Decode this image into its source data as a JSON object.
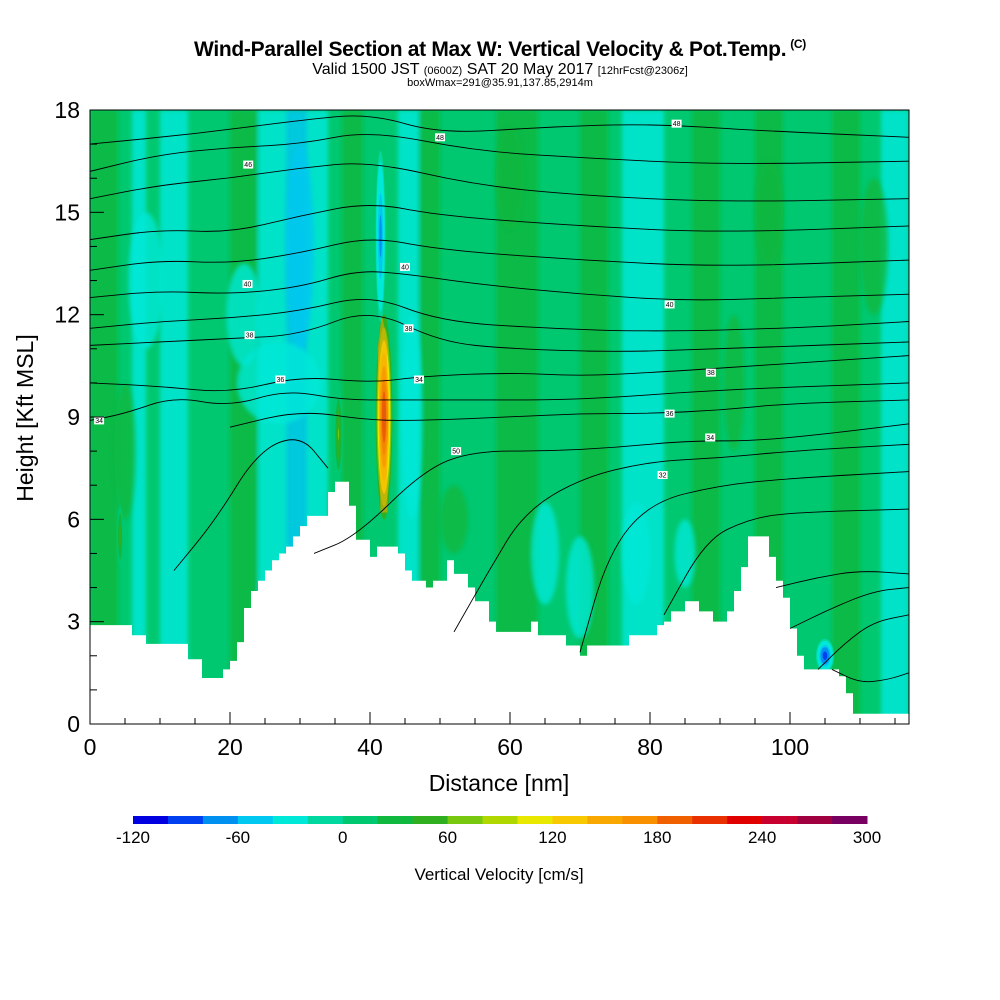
{
  "chart_data": {
    "type": "heatmap",
    "title": "Wind-Parallel Section at Max W: Vertical Velocity & Pot.Temp.",
    "title_unit": "(C)",
    "subtitle": {
      "valid": "Valid 1500 JST",
      "zulu": "(0600Z)",
      "date": "SAT 20 May 2017",
      "fcst": "[12hrFcst@2306z]"
    },
    "box_info": "boxWmax=291@35.91,137.85,2914m",
    "xlabel": "Distance [nm]",
    "ylabel": "Height [Kft MSL]",
    "xlim": [
      0,
      117
    ],
    "ylim": [
      0,
      18
    ],
    "x_ticks": [
      0,
      20,
      40,
      60,
      80,
      100
    ],
    "x_tick_labels": [
      "0",
      "20",
      "40",
      "60",
      "80",
      "100"
    ],
    "y_ticks": [
      0,
      3,
      6,
      9,
      12,
      15,
      18
    ],
    "y_tick_labels": [
      "0",
      "3",
      "6",
      "9",
      "12",
      "15",
      "18"
    ],
    "colorbar": {
      "label": "Vertical Velocity [cm/s]",
      "tick_values": [
        -120,
        -60,
        0,
        60,
        120,
        180,
        240,
        300
      ],
      "tick_labels": [
        "-120",
        "-60",
        "0",
        "60",
        "120",
        "180",
        "240",
        "300"
      ],
      "levels": [
        -120,
        -100,
        -80,
        -60,
        -40,
        -20,
        0,
        20,
        40,
        60,
        80,
        100,
        120,
        140,
        160,
        180,
        200,
        220,
        240,
        260,
        280,
        300
      ],
      "colors": [
        "#0000e0",
        "#0040f0",
        "#0090f0",
        "#00c8f0",
        "#00e8d8",
        "#00d8a0",
        "#00c870",
        "#10b840",
        "#30b020",
        "#78c810",
        "#b0d800",
        "#e8e800",
        "#f8c800",
        "#f8a800",
        "#f89000",
        "#f06000",
        "#e83000",
        "#e00000",
        "#c80030",
        "#a00040",
        "#780060"
      ]
    },
    "terrain": [
      [
        0,
        2.9
      ],
      [
        2,
        2.9
      ],
      [
        4,
        2.9
      ],
      [
        6,
        2.6
      ],
      [
        8,
        2.35
      ],
      [
        10,
        2.35
      ],
      [
        12,
        2.35
      ],
      [
        14,
        1.9
      ],
      [
        16,
        1.35
      ],
      [
        18,
        1.35
      ],
      [
        19,
        1.6
      ],
      [
        20,
        1.85
      ],
      [
        21,
        2.4
      ],
      [
        22,
        3.4
      ],
      [
        23,
        3.9
      ],
      [
        24,
        4.2
      ],
      [
        25,
        4.5
      ],
      [
        26,
        4.8
      ],
      [
        27,
        5.0
      ],
      [
        28,
        5.2
      ],
      [
        29,
        5.5
      ],
      [
        30,
        5.8
      ],
      [
        31,
        6.1
      ],
      [
        32,
        6.1
      ],
      [
        33,
        6.1
      ],
      [
        34,
        6.8
      ],
      [
        35,
        7.1
      ],
      [
        36,
        7.1
      ],
      [
        37,
        6.4
      ],
      [
        38,
        5.4
      ],
      [
        39,
        5.4
      ],
      [
        40,
        4.9
      ],
      [
        41,
        5.2
      ],
      [
        42,
        5.2
      ],
      [
        43,
        5.2
      ],
      [
        44,
        5.0
      ],
      [
        45,
        4.5
      ],
      [
        46,
        4.2
      ],
      [
        47,
        4.2
      ],
      [
        48,
        4.0
      ],
      [
        49,
        4.2
      ],
      [
        50,
        4.2
      ],
      [
        51,
        4.8
      ],
      [
        52,
        4.4
      ],
      [
        53,
        4.4
      ],
      [
        54,
        4.0
      ],
      [
        55,
        3.6
      ],
      [
        56,
        3.6
      ],
      [
        57,
        3.0
      ],
      [
        58,
        2.7
      ],
      [
        59,
        2.7
      ],
      [
        60,
        2.7
      ],
      [
        61,
        2.7
      ],
      [
        62,
        2.7
      ],
      [
        63,
        3.0
      ],
      [
        64,
        2.6
      ],
      [
        65,
        2.6
      ],
      [
        66,
        2.6
      ],
      [
        67,
        2.6
      ],
      [
        68,
        2.3
      ],
      [
        69,
        2.3
      ],
      [
        70,
        2.0
      ],
      [
        71,
        2.3
      ],
      [
        72,
        2.3
      ],
      [
        73,
        2.3
      ],
      [
        74,
        2.3
      ],
      [
        75,
        2.3
      ],
      [
        76,
        2.3
      ],
      [
        77,
        2.6
      ],
      [
        78,
        2.6
      ],
      [
        79,
        2.6
      ],
      [
        80,
        2.6
      ],
      [
        81,
        2.9
      ],
      [
        82,
        3.0
      ],
      [
        83,
        3.3
      ],
      [
        84,
        3.3
      ],
      [
        85,
        3.6
      ],
      [
        86,
        3.6
      ],
      [
        87,
        3.3
      ],
      [
        88,
        3.3
      ],
      [
        89,
        3.0
      ],
      [
        90,
        3.0
      ],
      [
        91,
        3.3
      ],
      [
        92,
        3.9
      ],
      [
        93,
        4.6
      ],
      [
        94,
        5.5
      ],
      [
        95,
        5.5
      ],
      [
        96,
        5.5
      ],
      [
        97,
        4.9
      ],
      [
        98,
        4.2
      ],
      [
        99,
        3.7
      ],
      [
        100,
        2.8
      ],
      [
        101,
        2.0
      ],
      [
        102,
        1.6
      ],
      [
        103,
        1.6
      ],
      [
        104,
        1.6
      ],
      [
        105,
        1.6
      ],
      [
        106,
        1.6
      ],
      [
        107,
        1.4
      ],
      [
        108,
        0.9
      ],
      [
        109,
        0.3
      ],
      [
        110,
        0.3
      ],
      [
        112,
        0.3
      ],
      [
        114,
        0.3
      ],
      [
        116,
        0.3
      ],
      [
        117,
        0.3
      ]
    ],
    "velocity_features": [
      {
        "type": "updraft_core",
        "center_x": 42.0,
        "center_y": 9.0,
        "width": 1.2,
        "height": 3.0,
        "peak": 290
      },
      {
        "type": "updraft_secondary",
        "center_x": 35.5,
        "center_y": 8.5,
        "width": 0.6,
        "height": 1.4,
        "peak": 70
      },
      {
        "type": "updraft_small",
        "center_x": 4.3,
        "center_y": 5.5,
        "width": 0.4,
        "height": 0.9,
        "peak": 60
      },
      {
        "type": "downdraft_upper",
        "center_x": 41.5,
        "center_y": 14.3,
        "width": 0.7,
        "height": 2.5,
        "peak": -80
      },
      {
        "type": "downdraft_valley",
        "center_x": 105.0,
        "center_y": 2.0,
        "width": 1.3,
        "height": 0.5,
        "peak": -110
      }
    ],
    "theta_contours": [
      {
        "label": "34",
        "label_at": [
          89,
          8.4
        ],
        "points": [
          [
            32,
            5.0
          ],
          [
            38,
            5.5
          ],
          [
            48,
            7.5
          ],
          [
            55,
            8.0
          ],
          [
            65,
            8.0
          ],
          [
            75,
            8.1
          ],
          [
            85,
            8.3
          ],
          [
            95,
            8.3
          ],
          [
            105,
            8.5
          ],
          [
            117,
            8.8
          ]
        ]
      },
      {
        "label": "36",
        "label_at": [
          83,
          9.1
        ],
        "points": [
          [
            20,
            8.7
          ],
          [
            30,
            9.2
          ],
          [
            40,
            8.9
          ],
          [
            48,
            8.9
          ],
          [
            60,
            9.0
          ],
          [
            70,
            9.1
          ],
          [
            80,
            9.1
          ],
          [
            90,
            9.2
          ],
          [
            100,
            9.4
          ],
          [
            117,
            9.5
          ]
        ]
      },
      {
        "label": "38",
        "label_at": [
          89,
          10.3
        ],
        "points": [
          [
            0,
            10.0
          ],
          [
            10,
            9.9
          ],
          [
            20,
            9.7
          ],
          [
            30,
            10.2
          ],
          [
            40,
            10.0
          ],
          [
            48,
            10.2
          ],
          [
            60,
            10.3
          ],
          [
            70,
            10.2
          ],
          [
            80,
            10.3
          ],
          [
            95,
            10.5
          ],
          [
            117,
            10.8
          ]
        ]
      },
      {
        "label": "40",
        "label_at": [
          83,
          12.3
        ],
        "points": [
          [
            0,
            12.5
          ],
          [
            10,
            12.7
          ],
          [
            20,
            12.6
          ],
          [
            30,
            12.8
          ],
          [
            38,
            13.3
          ],
          [
            45,
            13.2
          ],
          [
            55,
            12.9
          ],
          [
            70,
            12.6
          ],
          [
            85,
            12.4
          ],
          [
            100,
            12.5
          ],
          [
            117,
            12.6
          ]
        ]
      },
      {
        "label": "48",
        "label_at": [
          51,
          17.2
        ],
        "points": [
          [
            0,
            17.0
          ],
          [
            15,
            17.3
          ],
          [
            30,
            17.7
          ],
          [
            40,
            17.9
          ],
          [
            50,
            17.3
          ],
          [
            65,
            17.5
          ],
          [
            80,
            17.6
          ],
          [
            95,
            17.4
          ],
          [
            117,
            17.2
          ]
        ]
      }
    ],
    "contour_label_text": {
      "left_edge": "34",
      "mid_low": "34",
      "mid_30": "36",
      "left_38": "38",
      "upper_40": "40",
      "upper_46": "46",
      "top_48": "48",
      "right_36": "36",
      "right_32": "32",
      "label_50": "50"
    }
  }
}
